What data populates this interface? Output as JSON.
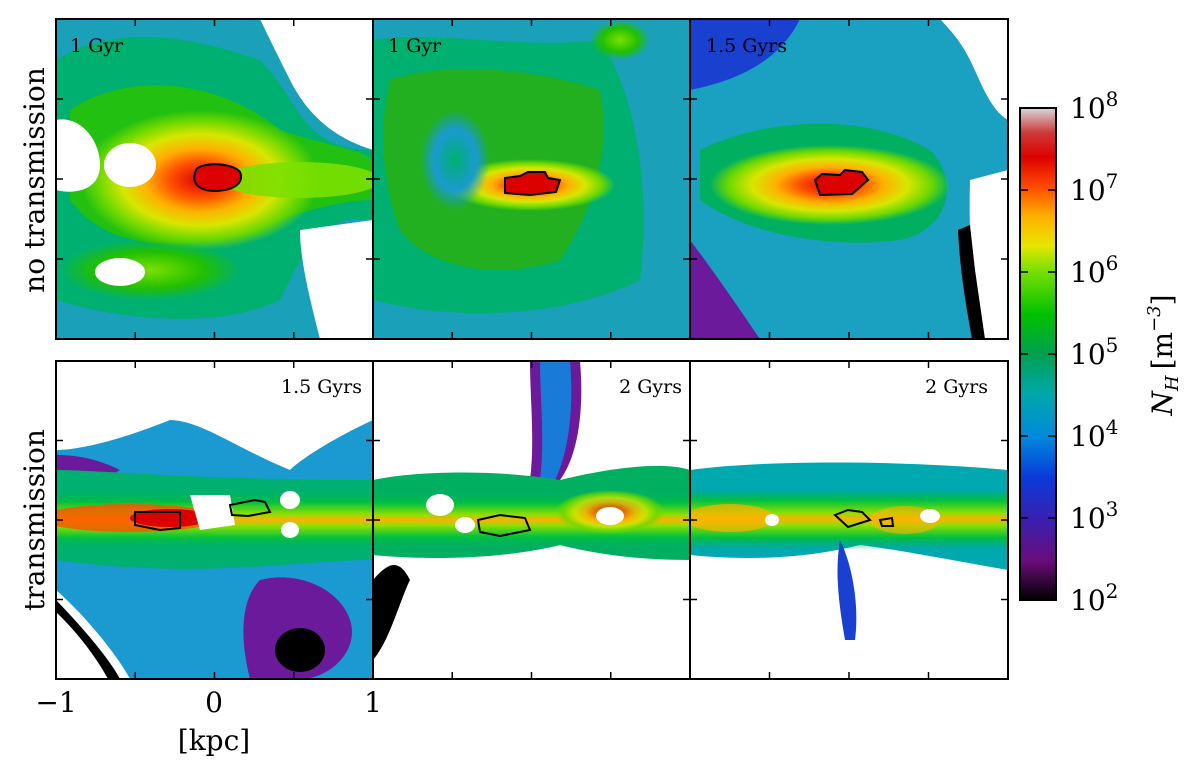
{
  "chart_data": {
    "type": "heatmap",
    "rows": [
      {
        "label": "no transmission",
        "panels": [
          "1 Gyr",
          "1 Gyr",
          "1.5 Gyrs"
        ]
      },
      {
        "label": "transmission",
        "panels": [
          "1.5 Gyrs",
          "2 Gyrs",
          "2 Gyrs"
        ]
      }
    ],
    "x_ticks": [
      "−1",
      "0",
      "1"
    ],
    "x_range": [
      -1,
      1
    ],
    "y_range": [
      -1,
      1
    ],
    "xlabel": "[kpc]",
    "colorbar": {
      "label": "N_H [m^-3]",
      "label_main": "N",
      "label_sub": "H",
      "label_unit": "[m",
      "label_exp": "−3",
      "label_close": "]",
      "scale": "log",
      "range": [
        100,
        100000000
      ],
      "ticks": [
        {
          "base": "10",
          "exp": "2"
        },
        {
          "base": "10",
          "exp": "3"
        },
        {
          "base": "10",
          "exp": "4"
        },
        {
          "base": "10",
          "exp": "5"
        },
        {
          "base": "10",
          "exp": "6"
        },
        {
          "base": "10",
          "exp": "7"
        },
        {
          "base": "10",
          "exp": "8"
        }
      ],
      "colormap": "nipy_spectral"
    }
  }
}
